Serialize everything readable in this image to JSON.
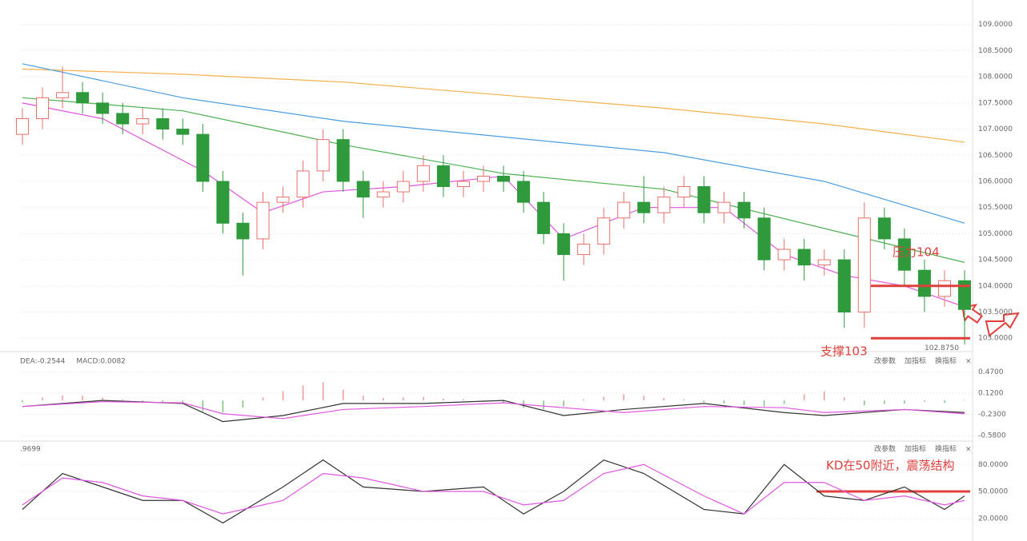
{
  "chart_data": [
    {
      "type": "candlestick",
      "xlim": [
        0,
        47
      ],
      "ylim": [
        102.82,
        109.47
      ],
      "yticks": [
        {
          "value": 103,
          "label": "103.0000"
        },
        {
          "value": 103.5,
          "label": "103.5000"
        },
        {
          "value": 104,
          "label": "104.0000"
        },
        {
          "value": 104.5,
          "label": "104.5000"
        },
        {
          "value": 105,
          "label": "105.0000"
        },
        {
          "value": 105.5,
          "label": "105.5000"
        },
        {
          "value": 106,
          "label": "106.0000"
        },
        {
          "value": 106.5,
          "label": "106.5000"
        },
        {
          "value": 107,
          "label": "107.0000"
        },
        {
          "value": 107.5,
          "label": "107.5000"
        },
        {
          "value": 108,
          "label": "108.0000"
        },
        {
          "value": 108.5,
          "label": "108.5000"
        },
        {
          "value": 109,
          "label": "109.0000"
        }
      ],
      "grid": true,
      "up_color": "#e8706a",
      "down_color": "#2e9a3c",
      "open": [
        106.9,
        107.2,
        107.6,
        107.7,
        107.5,
        107.3,
        107.1,
        107.2,
        107.0,
        106.9,
        106.0,
        105.2,
        104.9,
        105.6,
        105.7,
        106.2,
        106.8,
        106.0,
        105.7,
        105.8,
        106.0,
        106.3,
        105.9,
        106.0,
        106.1,
        106.0,
        105.6,
        105.0,
        104.6,
        104.8,
        105.3,
        105.6,
        105.4,
        105.7,
        105.9,
        105.4,
        105.6,
        105.3,
        104.5,
        104.7,
        104.4,
        104.5,
        103.5,
        105.3,
        104.9,
        104.3,
        103.8,
        104.1
      ],
      "high": [
        107.4,
        107.8,
        108.2,
        107.9,
        107.7,
        107.5,
        107.4,
        107.4,
        107.2,
        107.1,
        106.2,
        105.4,
        105.8,
        105.9,
        106.4,
        107.0,
        107.0,
        106.2,
        106.0,
        106.2,
        106.5,
        106.5,
        106.2,
        106.3,
        106.3,
        106.2,
        105.8,
        105.2,
        105.0,
        105.5,
        105.8,
        106.1,
        105.9,
        106.1,
        106.1,
        105.8,
        105.8,
        105.5,
        104.9,
        104.9,
        104.7,
        104.7,
        105.6,
        105.5,
        105.1,
        104.5,
        104.3,
        104.3
      ],
      "low": [
        106.7,
        107.0,
        107.4,
        107.3,
        107.1,
        106.9,
        106.9,
        106.8,
        106.7,
        105.8,
        105.0,
        104.2,
        104.7,
        105.4,
        105.5,
        106.0,
        105.8,
        105.3,
        105.5,
        105.6,
        105.8,
        105.7,
        105.7,
        105.8,
        105.8,
        105.4,
        104.8,
        104.1,
        104.4,
        104.6,
        105.1,
        105.2,
        105.2,
        105.5,
        105.2,
        105.2,
        105.1,
        104.3,
        104.3,
        104.1,
        104.2,
        103.2,
        103.2,
        104.7,
        104.0,
        103.5,
        103.6,
        102.875
      ],
      "close": [
        107.2,
        107.6,
        107.7,
        107.5,
        107.3,
        107.1,
        107.2,
        107.0,
        106.9,
        106.0,
        105.2,
        104.9,
        105.6,
        105.7,
        106.2,
        106.8,
        106.0,
        105.7,
        105.8,
        106.0,
        106.3,
        105.9,
        106.0,
        106.1,
        106.0,
        105.6,
        105.0,
        104.6,
        104.8,
        105.3,
        105.6,
        105.4,
        105.7,
        105.9,
        105.4,
        105.6,
        105.3,
        104.5,
        104.7,
        104.4,
        104.5,
        103.5,
        105.3,
        104.9,
        104.3,
        103.8,
        104.1,
        103.55
      ],
      "lines": [
        {
          "color": "#f5b04a",
          "x": [
            0,
            8,
            16,
            24,
            32,
            40,
            47
          ],
          "values": [
            108.15,
            108.05,
            107.9,
            107.65,
            107.4,
            107.1,
            106.75
          ]
        },
        {
          "color": "#4a9de0",
          "x": [
            0,
            8,
            16,
            24,
            32,
            40,
            47
          ],
          "values": [
            108.25,
            107.6,
            107.15,
            106.85,
            106.55,
            106.0,
            105.2
          ]
        },
        {
          "color": "#4caf50",
          "x": [
            0,
            8,
            16,
            24,
            32,
            40,
            47
          ],
          "values": [
            107.6,
            107.35,
            106.7,
            106.15,
            105.85,
            105.1,
            104.45
          ]
        },
        {
          "color": "#e055e0",
          "x": [
            0,
            4,
            9,
            12,
            15,
            19,
            24,
            27,
            31,
            35,
            38,
            41,
            44,
            47
          ],
          "values": [
            107.5,
            107.2,
            106.2,
            105.4,
            105.8,
            105.9,
            106.1,
            104.9,
            105.5,
            105.5,
            104.6,
            104.2,
            104.0,
            103.6
          ]
        }
      ],
      "hlines": [
        104,
        103
      ],
      "hline_color": "#e0403c",
      "annotations": [
        "压力104",
        "支撑103",
        "102.8750"
      ]
    },
    {
      "type": "macd",
      "header": [
        "DEA:-0.2544",
        "MACD:0.0082"
      ],
      "buttons": [
        "改参数",
        "加指标",
        "换指标",
        "×"
      ],
      "xlim": [
        0,
        47
      ],
      "ylim": [
        -0.62,
        0.57
      ],
      "yticks": [
        {
          "value": 0.47,
          "label": "0.4700"
        },
        {
          "value": 0.12,
          "label": "0.1200"
        },
        {
          "value": -0.23,
          "label": "-0.2300"
        },
        {
          "value": -0.58,
          "label": "-0.5800"
        }
      ],
      "up_color": "#ec9a9a",
      "down_color": "#7cc47c",
      "values": [
        -0.03,
        0.05,
        0.08,
        0.08,
        0.05,
        0.02,
        -0.02,
        -0.03,
        -0.05,
        -0.18,
        -0.2,
        -0.12,
        0.05,
        0.15,
        0.25,
        0.3,
        0.18,
        0.08,
        0.04,
        0.05,
        0.06,
        0.03,
        0.02,
        -0.02,
        -0.05,
        -0.12,
        -0.15,
        -0.1,
        0.02,
        0.06,
        0.1,
        0.08,
        0.04,
        0.02,
        -0.03,
        -0.05,
        -0.08,
        -0.1,
        -0.06,
        0.1,
        0.15,
        0.05,
        -0.08,
        -0.06,
        -0.05,
        -0.02,
        -0.04,
        0.01
      ],
      "lines": [
        {
          "color": "#333333",
          "x": [
            0,
            4,
            8,
            10,
            13,
            16,
            20,
            24,
            27,
            30,
            34,
            38,
            40,
            44,
            47
          ],
          "values": [
            -0.1,
            0.0,
            -0.05,
            -0.35,
            -0.25,
            -0.05,
            -0.05,
            0.0,
            -0.25,
            -0.15,
            -0.05,
            -0.2,
            -0.25,
            -0.15,
            -0.2
          ]
        },
        {
          "color": "#e055e0",
          "x": [
            0,
            4,
            8,
            10,
            13,
            16,
            20,
            24,
            27,
            30,
            34,
            38,
            40,
            44,
            47
          ],
          "values": [
            -0.1,
            -0.02,
            -0.04,
            -0.22,
            -0.3,
            -0.15,
            -0.1,
            -0.04,
            -0.12,
            -0.2,
            -0.1,
            -0.12,
            -0.2,
            -0.15,
            -0.22
          ]
        }
      ]
    },
    {
      "type": "line",
      "header": [
        ".9699"
      ],
      "buttons": [
        "改参数",
        "加指标",
        "换指标",
        "×"
      ],
      "xlim": [
        0,
        47
      ],
      "ylim": [
        10,
        90
      ],
      "yticks": [
        {
          "value": 80,
          "label": "80.0000"
        },
        {
          "value": 50,
          "label": "50.0000"
        },
        {
          "value": 20,
          "label": "20.0000"
        }
      ],
      "lines": [
        {
          "color": "#333333",
          "x": [
            0,
            2,
            4,
            6,
            8,
            10,
            13,
            15,
            17,
            20,
            23,
            25,
            27,
            29,
            31,
            34,
            36,
            38,
            40,
            42,
            44,
            46,
            47
          ],
          "values": [
            30,
            70,
            55,
            40,
            40,
            15,
            55,
            85,
            55,
            50,
            55,
            25,
            50,
            85,
            70,
            30,
            25,
            80,
            45,
            40,
            55,
            30,
            45
          ]
        },
        {
          "color": "#e055e0",
          "x": [
            0,
            2,
            4,
            6,
            8,
            10,
            13,
            15,
            17,
            20,
            23,
            25,
            27,
            29,
            31,
            34,
            36,
            38,
            40,
            42,
            44,
            46,
            47
          ],
          "values": [
            35,
            65,
            60,
            45,
            40,
            25,
            40,
            70,
            65,
            50,
            50,
            35,
            40,
            70,
            80,
            45,
            25,
            60,
            60,
            40,
            45,
            35,
            40
          ]
        }
      ],
      "hlines": [
        50
      ],
      "hline_color": "#e0403c",
      "annotations": [
        "KD在50附近，震荡结构"
      ]
    }
  ]
}
